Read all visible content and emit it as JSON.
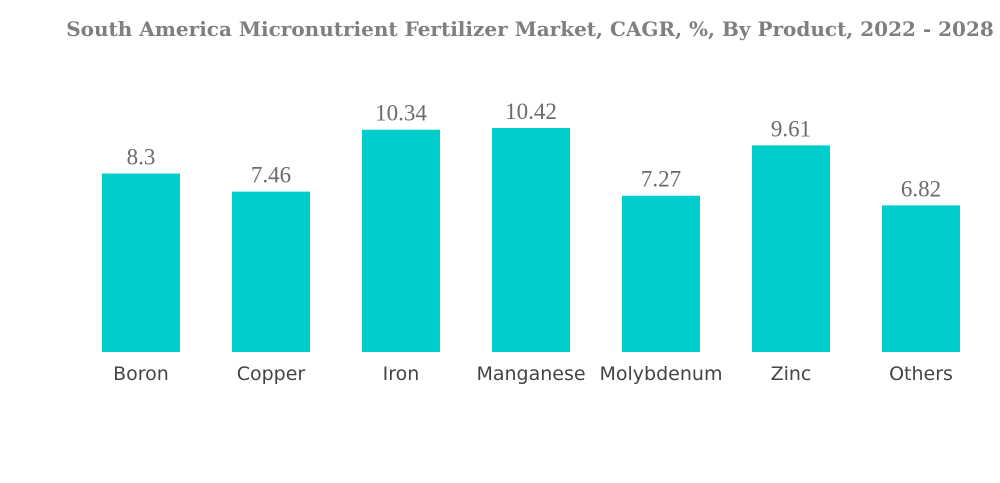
{
  "chart_data": {
    "type": "bar",
    "title": "South America Micronutrient Fertilizer Market, CAGR, %, By Product, 2022 - 2028",
    "categories": [
      "Boron",
      "Copper",
      "Iron",
      "Manganese",
      "Molybdenum",
      "Zinc",
      "Others"
    ],
    "values": [
      8.3,
      7.46,
      10.34,
      10.42,
      7.27,
      9.61,
      6.82
    ],
    "value_labels": [
      "8.3",
      "7.46",
      "10.34",
      "10.42",
      "7.27",
      "9.61",
      "6.82"
    ],
    "xlabel": "",
    "ylabel": "",
    "ylim": [
      0,
      10.42
    ],
    "grid": false,
    "legend": "none",
    "bar_color": "#00cccc"
  }
}
